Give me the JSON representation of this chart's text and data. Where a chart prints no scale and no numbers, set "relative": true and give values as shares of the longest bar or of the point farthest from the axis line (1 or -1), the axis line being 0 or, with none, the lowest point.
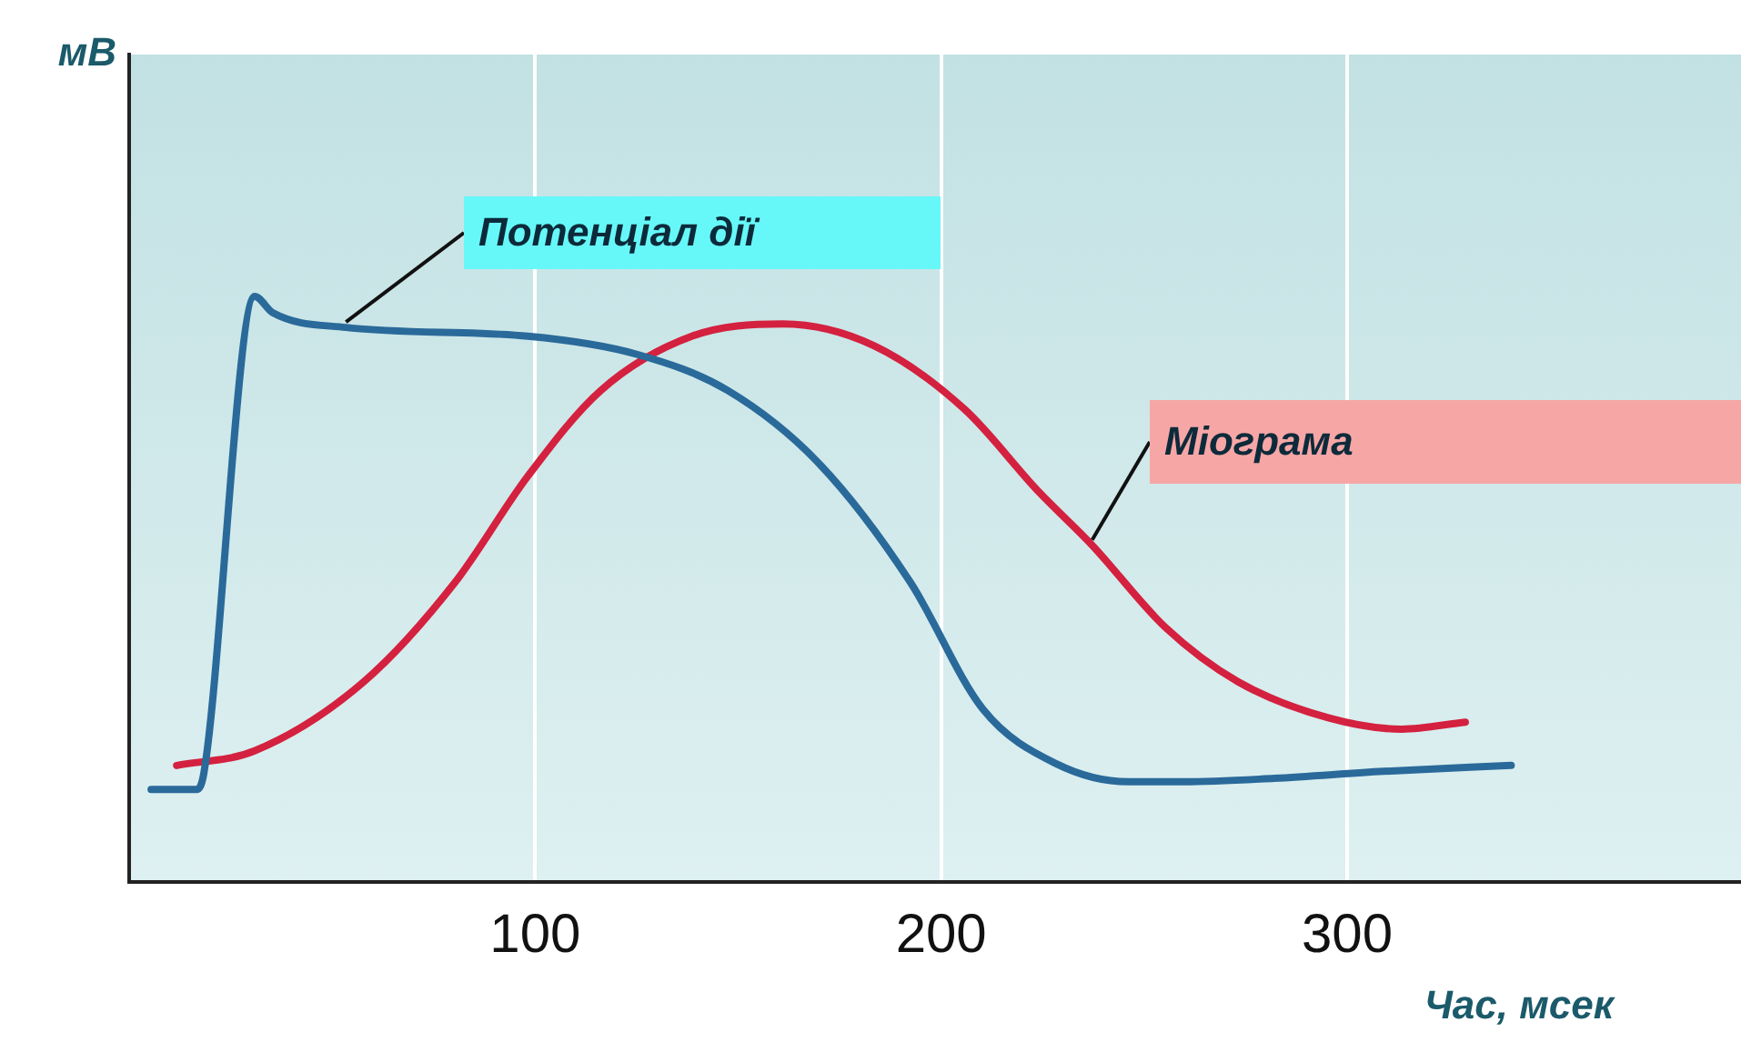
{
  "chart_data": {
    "type": "line",
    "xlabel": "Час, мсек",
    "annotations": [
      "мВ"
    ],
    "relative": true,
    "xlim": [
      0,
      397
    ],
    "xticks": [
      100,
      200,
      300
    ],
    "grid": "x",
    "legend": false,
    "marker": "none",
    "line_style": "solid",
    "series": [
      {
        "name": "Потенціал дії",
        "color": "#2a6a9a",
        "x": [
          5.4,
          16.6,
          18.4,
          30.9,
          35.4,
          53.4,
          98.2,
          125.1,
          147.5,
          170,
          192.4,
          210.3,
          228.3,
          246.2,
          259.6,
          282.1,
          309,
          340.4
        ],
        "values": [
          0.158,
          0.158,
          0.186,
          1.0,
          0.972,
          0.947,
          0.932,
          0.901,
          0.839,
          0.714,
          0.512,
          0.295,
          0.202,
          0.171,
          0.171,
          0.177,
          0.189,
          0.199
        ]
      },
      {
        "name": "Міограма",
        "color": "#d4213f",
        "x": [
          11.7,
          30.9,
          57.8,
          80.3,
          98.2,
          116.1,
          138.6,
          161,
          183.4,
          205.8,
          223.8,
          237.2,
          255.2,
          273.1,
          295.5,
          313.5,
          329.1
        ],
        "values": [
          0.199,
          0.224,
          0.342,
          0.512,
          0.693,
          0.839,
          0.932,
          0.953,
          0.916,
          0.807,
          0.668,
          0.575,
          0.435,
          0.342,
          0.28,
          0.261,
          0.273
        ]
      }
    ]
  }
}
